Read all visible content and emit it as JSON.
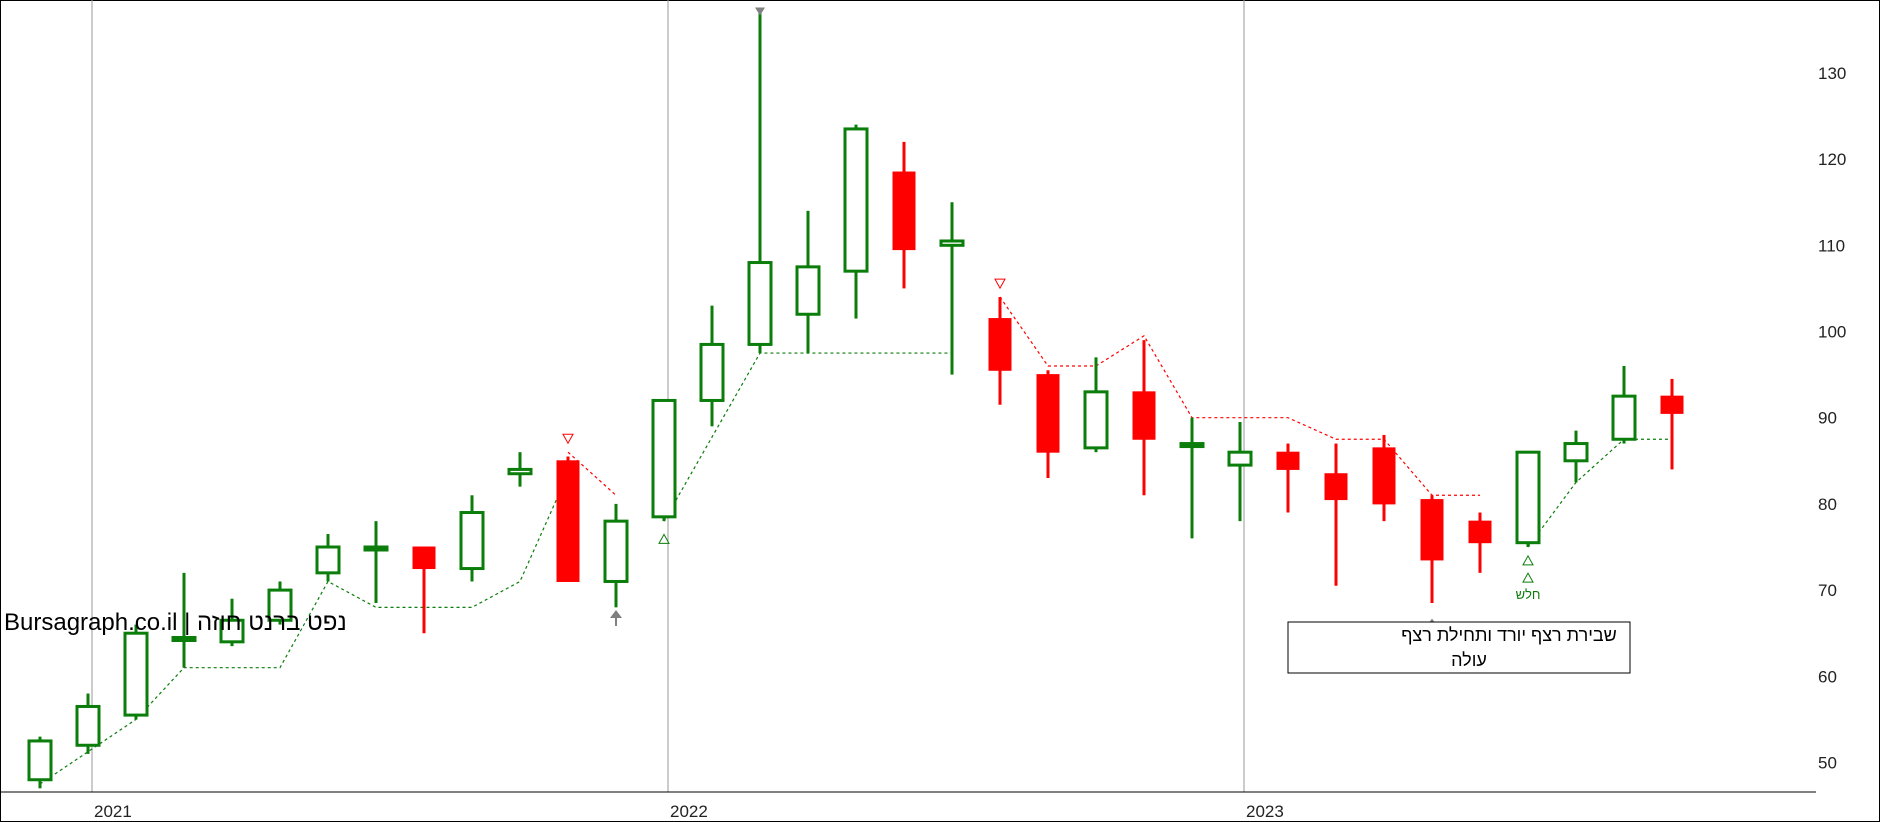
{
  "watermark": "Bursagraph.co.il | נפט ברנט חוזה",
  "callout": {
    "line1": "שבירת רצף יורד ותחילת רצף",
    "line2": "עולה"
  },
  "buy_marker_label": "חלש",
  "colors": {
    "up": "#0a7d0a",
    "down": "#ff0000",
    "grid": "#9a9a9a",
    "arrow": "#808080"
  },
  "chart_data": {
    "type": "candlestick",
    "interval": "monthly",
    "ylim": [
      45,
      136
    ],
    "y_ticks": [
      50,
      60,
      70,
      80,
      90,
      100,
      110,
      120,
      130
    ],
    "x_year_labels": [
      "2021",
      "2022",
      "2023"
    ],
    "year_start_index": [
      1,
      13,
      25
    ],
    "candles": [
      {
        "o": 48,
        "h": 53,
        "l": 47,
        "c": 52.5
      },
      {
        "o": 52,
        "h": 58,
        "l": 51,
        "c": 56.5
      },
      {
        "o": 55.5,
        "h": 66,
        "l": 55,
        "c": 65
      },
      {
        "o": 64.5,
        "h": 72,
        "l": 61,
        "c": 64.5
      },
      {
        "o": 64,
        "h": 69,
        "l": 63.5,
        "c": 66.5
      },
      {
        "o": 66.5,
        "h": 71,
        "l": 66,
        "c": 70
      },
      {
        "o": 72,
        "h": 76.5,
        "l": 71,
        "c": 75
      },
      {
        "o": 75,
        "h": 78,
        "l": 68.5,
        "c": 75
      },
      {
        "o": 75,
        "h": 75,
        "l": 65,
        "c": 72.5
      },
      {
        "o": 72.5,
        "h": 81,
        "l": 71,
        "c": 79
      },
      {
        "o": 83.5,
        "h": 86,
        "l": 82,
        "c": 84
      },
      {
        "o": 85,
        "h": 85.5,
        "l": 71,
        "c": 71
      },
      {
        "o": 71,
        "h": 80,
        "l": 68,
        "c": 78
      },
      {
        "o": 78.5,
        "h": 92,
        "l": 78,
        "c": 92
      },
      {
        "o": 92,
        "h": 103,
        "l": 89,
        "c": 98.5
      },
      {
        "o": 98.5,
        "h": 137,
        "l": 97.5,
        "c": 108
      },
      {
        "o": 102,
        "h": 114,
        "l": 97.5,
        "c": 107.5
      },
      {
        "o": 107,
        "h": 124,
        "l": 101.5,
        "c": 123.5
      },
      {
        "o": 118.5,
        "h": 122,
        "l": 105,
        "c": 109.5
      },
      {
        "o": 110,
        "h": 115,
        "l": 95,
        "c": 110.5
      },
      {
        "o": 101.5,
        "h": 104,
        "l": 91.5,
        "c": 95.5
      },
      {
        "o": 95,
        "h": 95.5,
        "l": 83,
        "c": 86
      },
      {
        "o": 86.5,
        "h": 97,
        "l": 86,
        "c": 93
      },
      {
        "o": 93,
        "h": 99,
        "l": 81,
        "c": 87.5
      },
      {
        "o": 87,
        "h": 90,
        "l": 76,
        "c": 87
      },
      {
        "o": 84.5,
        "h": 89.5,
        "l": 78,
        "c": 86
      },
      {
        "o": 86,
        "h": 87,
        "l": 79,
        "c": 84
      },
      {
        "o": 83.5,
        "h": 87,
        "l": 70.5,
        "c": 80.5
      },
      {
        "o": 86.5,
        "h": 88,
        "l": 78,
        "c": 80
      },
      {
        "o": 80.5,
        "h": 81,
        "l": 68.5,
        "c": 73.5
      },
      {
        "o": 78,
        "h": 79,
        "l": 72,
        "c": 75.5
      },
      {
        "o": 75.5,
        "h": 86,
        "l": 75,
        "c": 86
      },
      {
        "o": 85,
        "h": 88.5,
        "l": 82.5,
        "c": 87
      },
      {
        "o": 87.5,
        "h": 96,
        "l": 87,
        "c": 92.5
      },
      {
        "o": 92.5,
        "h": 94.5,
        "l": 84,
        "c": 90.5
      }
    ],
    "support_line": [
      {
        "i": 0,
        "v": 47.5
      },
      {
        "i": 2,
        "v": 55
      },
      {
        "i": 3,
        "v": 61
      },
      {
        "i": 5,
        "v": 61
      },
      {
        "i": 6,
        "v": 71
      },
      {
        "i": 7,
        "v": 68
      },
      {
        "i": 9,
        "v": 68
      },
      {
        "i": 10,
        "v": 71
      },
      {
        "i": 11,
        "v": 83.5
      }
    ],
    "support_line_2": [
      {
        "i": 13,
        "v": 78
      },
      {
        "i": 15,
        "v": 97.5
      },
      {
        "i": 19,
        "v": 97.5
      }
    ],
    "support_line_3": [
      {
        "i": 31,
        "v": 75
      },
      {
        "i": 32,
        "v": 82.5
      },
      {
        "i": 33,
        "v": 87.5
      },
      {
        "i": 34,
        "v": 87.5
      }
    ],
    "resistance_line": [
      {
        "i": 20,
        "v": 104
      },
      {
        "i": 21,
        "v": 96
      },
      {
        "i": 22,
        "v": 96
      },
      {
        "i": 23,
        "v": 99.5
      },
      {
        "i": 24,
        "v": 90
      },
      {
        "i": 26,
        "v": 90
      },
      {
        "i": 27,
        "v": 87.5
      },
      {
        "i": 28,
        "v": 87.5
      },
      {
        "i": 29,
        "v": 81
      },
      {
        "i": 30,
        "v": 81
      }
    ],
    "resistance_line_0": [
      {
        "i": 11,
        "v": 86
      },
      {
        "i": 12,
        "v": 81
      }
    ],
    "down_triangles": [
      {
        "i": 11,
        "v": 87.5
      },
      {
        "i": 20,
        "v": 105.5
      }
    ],
    "up_triangles": [
      {
        "i": 13,
        "v": 76
      },
      {
        "i": 31,
        "v": 73.5
      },
      {
        "i": 31,
        "v": 71.5
      }
    ],
    "gray_arrows": [
      {
        "i": 12,
        "v": 67
      },
      {
        "i": 29,
        "v": 66
      }
    ],
    "peak_marker": {
      "i": 15,
      "v": 137
    }
  }
}
